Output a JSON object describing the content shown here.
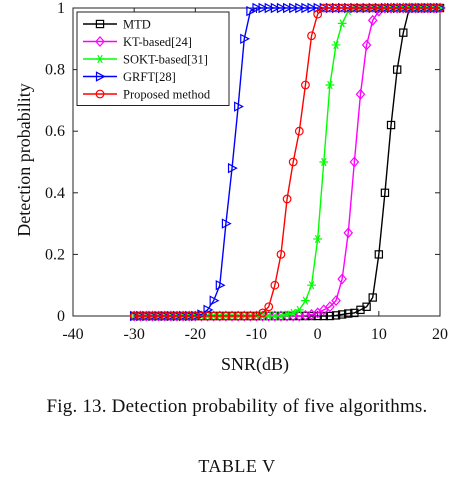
{
  "chart_data": {
    "type": "line",
    "title": "",
    "xlabel": "SNR(dB)",
    "ylabel": "Detection probability",
    "xlim": [
      -40,
      20
    ],
    "ylim": [
      0,
      1
    ],
    "xticks": [
      -40,
      -30,
      -20,
      -10,
      0,
      10,
      20
    ],
    "xtick_labels": [
      "-40",
      "-30",
      "-20",
      "-10",
      "0",
      "10",
      "20"
    ],
    "yticks": [
      0,
      0.2,
      0.4,
      0.6,
      0.8,
      1
    ],
    "ytick_labels": [
      "0",
      "0.2",
      "0.4",
      "0.6",
      "0.8",
      "1"
    ],
    "legend_position": "top-left",
    "x": [
      -30,
      -29,
      -28,
      -27,
      -26,
      -25,
      -24,
      -23,
      -22,
      -21,
      -20,
      -19,
      -18,
      -17,
      -16,
      -15,
      -14,
      -13,
      -12,
      -11,
      -10,
      -9,
      -8,
      -7,
      -6,
      -5,
      -4,
      -3,
      -2,
      -1,
      0,
      1,
      2,
      3,
      4,
      5,
      6,
      7,
      8,
      9,
      10,
      11,
      12,
      13,
      14,
      15,
      16,
      17,
      18,
      19,
      20
    ],
    "series": [
      {
        "name": "MTD",
        "color": "#000000",
        "marker": "square",
        "values": [
          0,
          0,
          0,
          0,
          0,
          0,
          0,
          0,
          0,
          0,
          0,
          0,
          0,
          0,
          0,
          0,
          0,
          0,
          0,
          0,
          0,
          0,
          0,
          0,
          0,
          0,
          0,
          0,
          0,
          0,
          0,
          0,
          0,
          0.002,
          0.005,
          0.008,
          0.01,
          0.02,
          0.03,
          0.06,
          0.2,
          0.4,
          0.62,
          0.8,
          0.92,
          1,
          1,
          1,
          1,
          1,
          1
        ]
      },
      {
        "name": "KT-based[24]",
        "color": "#ff00ff",
        "marker": "diamond",
        "values": [
          0,
          0,
          0,
          0,
          0,
          0,
          0,
          0,
          0,
          0,
          0,
          0,
          0,
          0,
          0,
          0,
          0,
          0,
          0,
          0,
          0,
          0,
          0,
          0,
          0,
          0,
          0,
          0,
          0.002,
          0.005,
          0.01,
          0.02,
          0.03,
          0.05,
          0.12,
          0.27,
          0.5,
          0.72,
          0.88,
          0.96,
          0.99,
          1,
          1,
          1,
          1,
          1,
          1,
          1,
          1,
          1,
          1
        ]
      },
      {
        "name": "SOKT-based[31]",
        "color": "#00ff00",
        "marker": "star",
        "values": [
          0,
          0,
          0,
          0,
          0,
          0,
          0,
          0,
          0,
          0,
          0,
          0,
          0,
          0,
          0,
          0,
          0,
          0,
          0,
          0,
          0,
          0,
          0,
          0,
          0,
          0.005,
          0.01,
          0.02,
          0.05,
          0.1,
          0.25,
          0.5,
          0.75,
          0.88,
          0.95,
          0.99,
          1,
          1,
          1,
          1,
          1,
          1,
          1,
          1,
          1,
          1,
          1,
          1,
          1,
          1,
          1
        ]
      },
      {
        "name": "GRFT[28]",
        "color": "#0000ff",
        "marker": "triangle-right",
        "values": [
          0,
          0,
          0,
          0,
          0,
          0,
          0,
          0,
          0,
          0,
          0,
          0.005,
          0.02,
          0.05,
          0.1,
          0.3,
          0.48,
          0.68,
          0.9,
          0.99,
          1,
          1,
          1,
          1,
          1,
          1,
          1,
          1,
          1,
          1,
          1,
          1,
          1,
          1,
          1,
          1,
          1,
          1,
          1,
          1,
          1,
          1,
          1,
          1,
          1,
          1,
          1,
          1,
          1,
          1,
          1
        ]
      },
      {
        "name": "Proposed method",
        "color": "#ff0000",
        "marker": "circle",
        "values": [
          0,
          0,
          0,
          0,
          0,
          0,
          0,
          0,
          0,
          0,
          0,
          0,
          0,
          0,
          0,
          0,
          0,
          0,
          0,
          0,
          0,
          0.01,
          0.03,
          0.1,
          0.2,
          0.38,
          0.5,
          0.6,
          0.75,
          0.91,
          0.98,
          1,
          1,
          1,
          1,
          1,
          1,
          1,
          1,
          1,
          1,
          1,
          1,
          1,
          1,
          1,
          1,
          1,
          1,
          1,
          1
        ]
      }
    ]
  },
  "caption": "Fig. 13.   Detection probability of five algorithms.",
  "table_title": "TABLE V"
}
